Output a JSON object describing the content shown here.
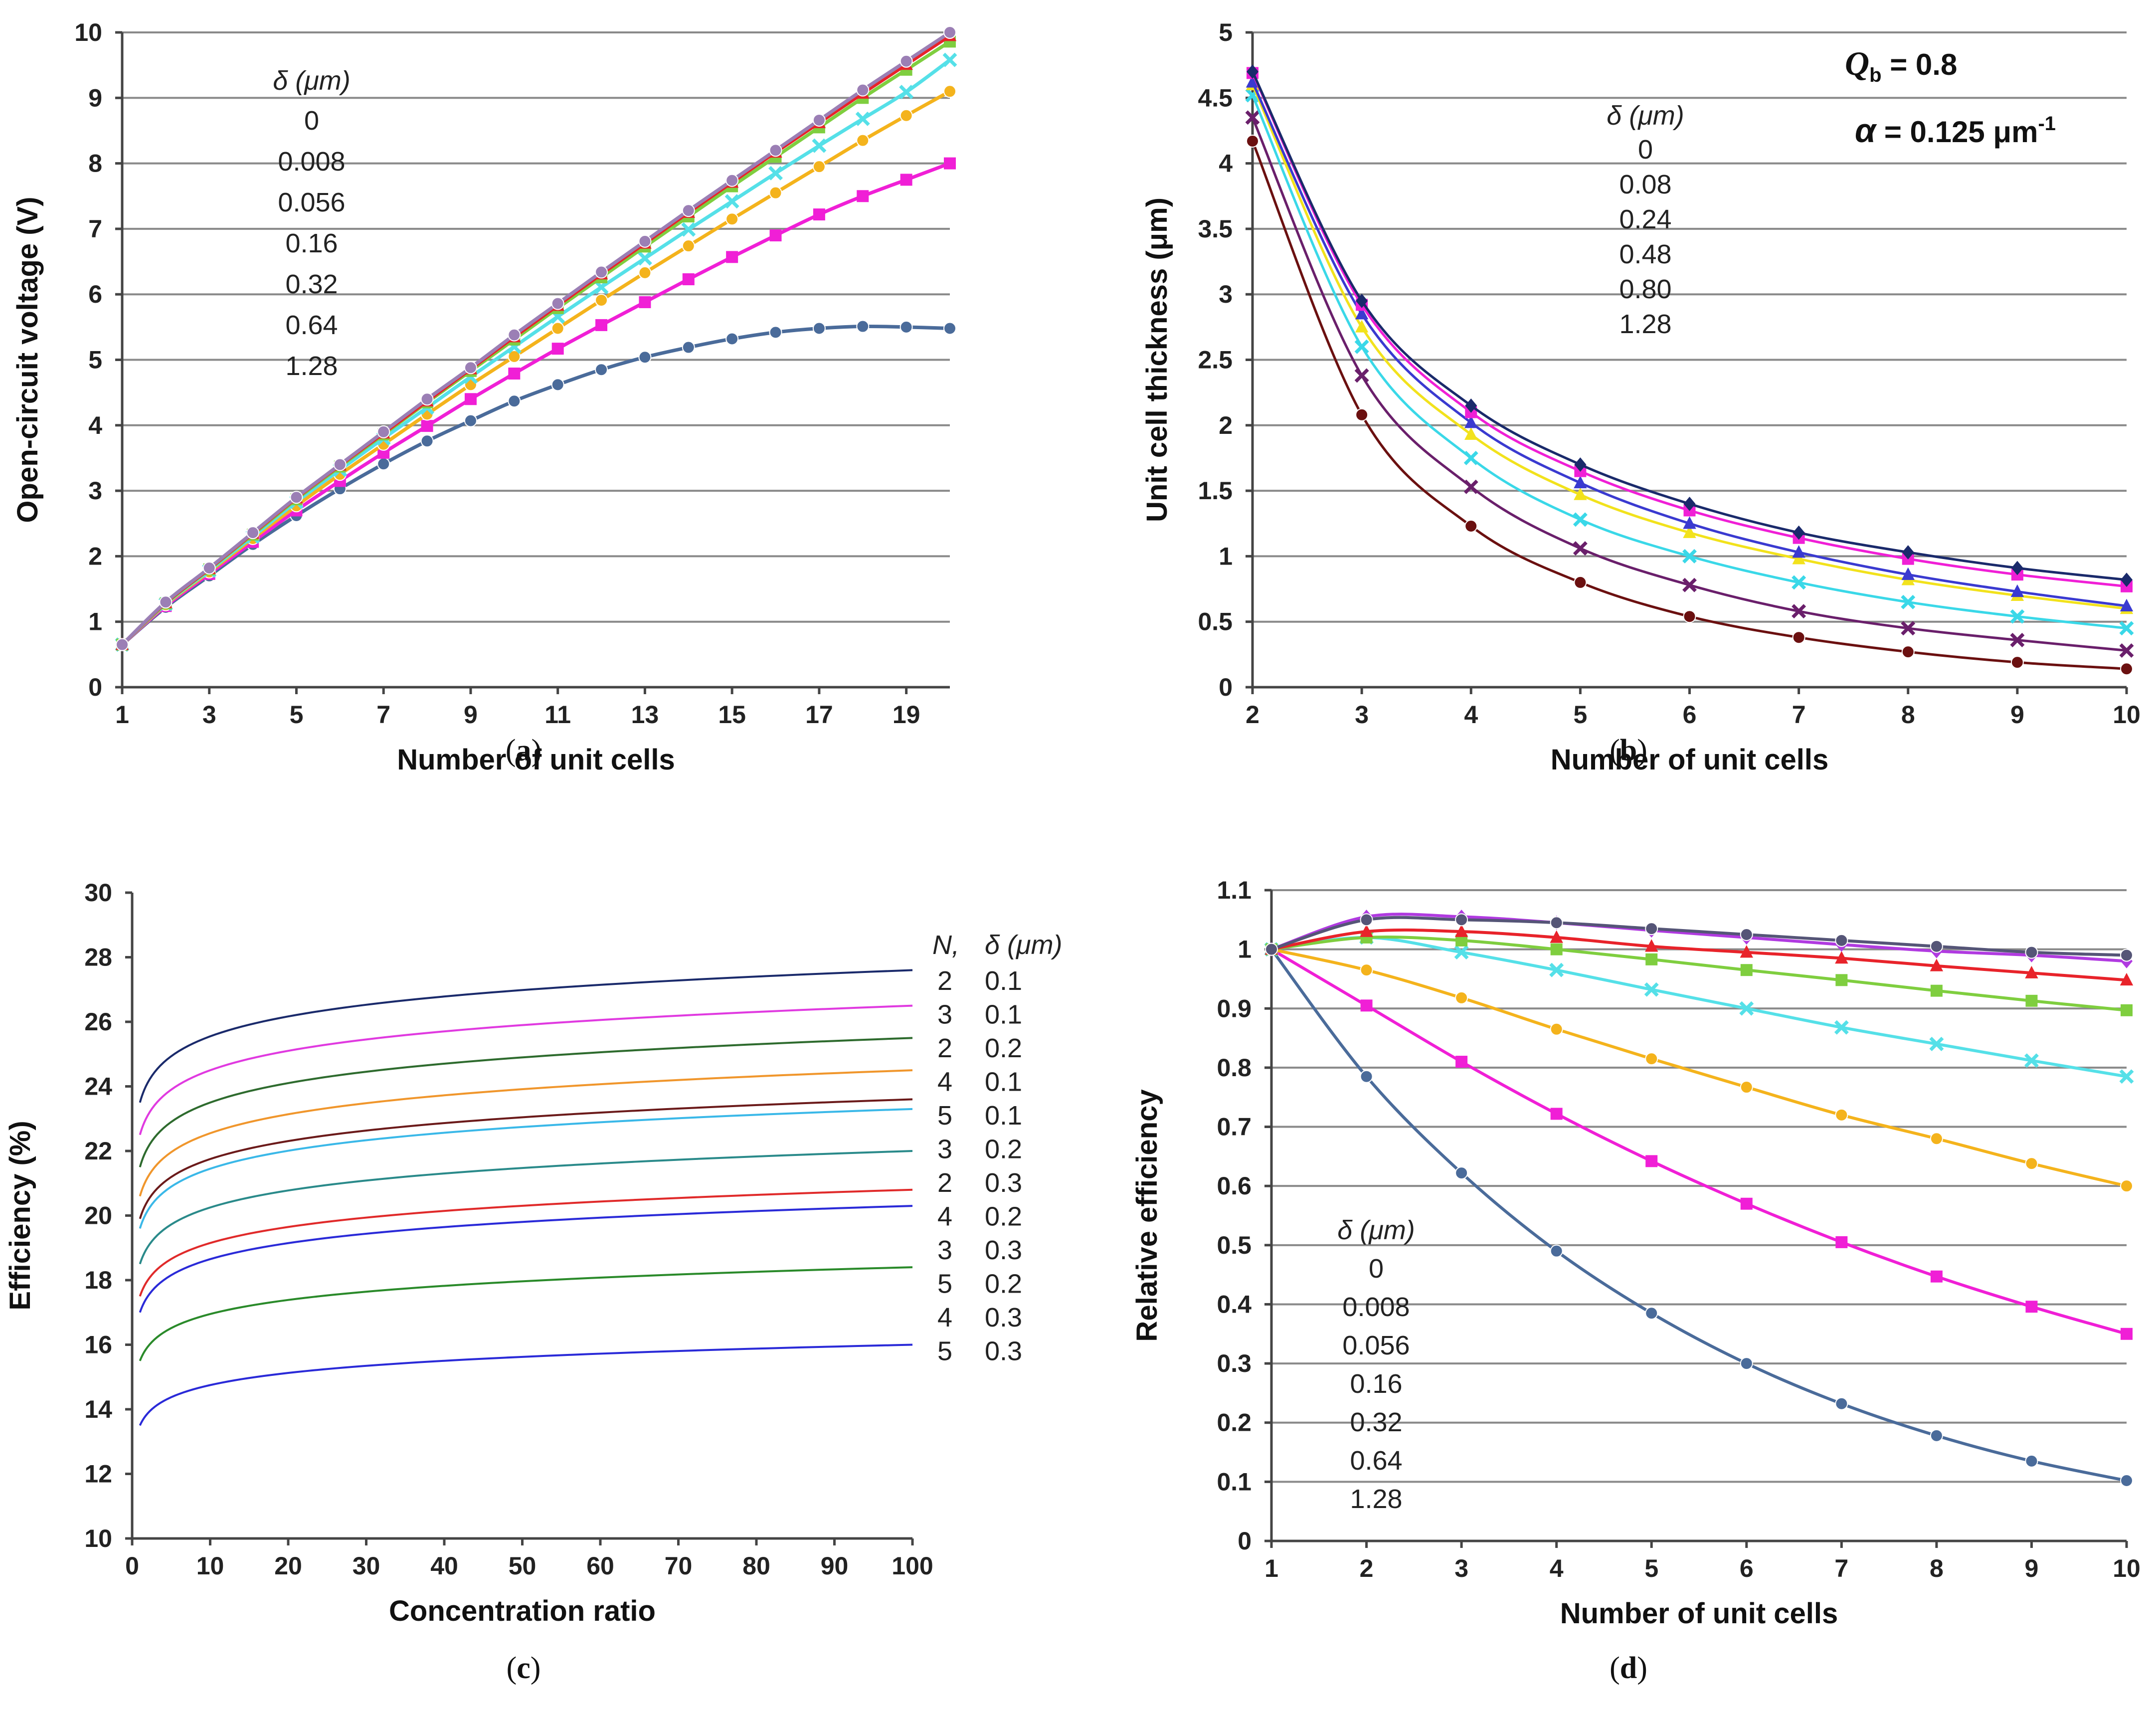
{
  "chart_data": [
    {
      "id": "a",
      "type": "line",
      "panel_label": "a",
      "xlabel": "Number of unit cells",
      "ylabel": "Open-circuit  voltage (V)",
      "xlim": [
        1,
        20
      ],
      "ylim": [
        0,
        10
      ],
      "xticks": [
        1,
        3,
        5,
        7,
        9,
        11,
        13,
        15,
        17,
        19
      ],
      "yticks": [
        0,
        1,
        2,
        3,
        4,
        5,
        6,
        7,
        8,
        9,
        10
      ],
      "x": [
        1,
        2,
        3,
        4,
        5,
        6,
        7,
        8,
        9,
        10,
        11,
        12,
        13,
        14,
        15,
        16,
        17,
        18,
        19,
        20
      ],
      "legend_title": "δ (μm)",
      "series": [
        {
          "name": "0",
          "color": "#9b7fb5",
          "marker": "circle",
          "values": [
            0.65,
            1.3,
            1.82,
            2.36,
            2.9,
            3.4,
            3.9,
            4.4,
            4.88,
            5.38,
            5.86,
            6.34,
            6.81,
            7.28,
            7.74,
            8.2,
            8.66,
            9.12,
            9.56,
            10.0
          ]
        },
        {
          "name": "0.008",
          "color": "#e8232a",
          "marker": "triangle",
          "values": [
            0.65,
            1.29,
            1.81,
            2.35,
            2.89,
            3.39,
            3.88,
            4.37,
            4.86,
            5.35,
            5.83,
            6.31,
            6.78,
            7.25,
            7.71,
            8.17,
            8.62,
            9.07,
            9.51,
            9.95
          ]
        },
        {
          "name": "0.056",
          "color": "#7fce3f",
          "marker": "square",
          "values": [
            0.65,
            1.28,
            1.8,
            2.33,
            2.87,
            3.37,
            3.86,
            4.35,
            4.83,
            5.31,
            5.79,
            6.26,
            6.73,
            7.19,
            7.65,
            8.1,
            8.55,
            9.0,
            9.43,
            9.86
          ]
        },
        {
          "name": "0.16",
          "color": "#55e0e8",
          "marker": "x",
          "values": [
            0.65,
            1.27,
            1.78,
            2.3,
            2.83,
            3.32,
            3.8,
            4.27,
            4.74,
            5.2,
            5.66,
            6.11,
            6.55,
            6.99,
            7.42,
            7.85,
            8.27,
            8.68,
            9.09,
            9.58
          ]
        },
        {
          "name": "0.32",
          "color": "#f4b31c",
          "marker": "circle",
          "values": [
            0.65,
            1.26,
            1.76,
            2.27,
            2.77,
            3.25,
            3.71,
            4.17,
            4.62,
            5.05,
            5.48,
            5.91,
            6.33,
            6.74,
            7.15,
            7.55,
            7.95,
            8.35,
            8.73,
            9.1
          ]
        },
        {
          "name": "0.64",
          "color": "#f01fd6",
          "marker": "square",
          "values": [
            0.65,
            1.24,
            1.73,
            2.22,
            2.7,
            3.15,
            3.58,
            3.99,
            4.4,
            4.79,
            5.17,
            5.53,
            5.88,
            6.23,
            6.57,
            6.9,
            7.22,
            7.5,
            7.75,
            8.0
          ]
        },
        {
          "name": "1.28",
          "color": "#4a6b9a",
          "marker": "circle",
          "values": [
            0.65,
            1.22,
            1.7,
            2.18,
            2.62,
            3.03,
            3.41,
            3.76,
            4.07,
            4.37,
            4.62,
            4.85,
            5.04,
            5.19,
            5.32,
            5.42,
            5.48,
            5.51,
            5.5,
            5.48
          ]
        }
      ]
    },
    {
      "id": "b",
      "type": "line",
      "panel_label": "b",
      "xlabel": "Number of unit cells",
      "ylabel": "Unit cell thickness  (μm)",
      "xlim": [
        2,
        10
      ],
      "ylim": [
        0,
        5
      ],
      "xticks": [
        2,
        3,
        4,
        5,
        6,
        7,
        8,
        9,
        10
      ],
      "yticks": [
        0,
        0.5,
        1,
        1.5,
        2,
        2.5,
        3,
        3.5,
        4,
        4.5,
        5
      ],
      "x": [
        2,
        3,
        4,
        5,
        6,
        7,
        8,
        9,
        10
      ],
      "legend_title": "δ (μm)",
      "annotation_q_prefix": "Q",
      "annotation_q_sub": "b",
      "annotation_q_value": " = 0.8",
      "annotation_alpha_prefix": "α",
      "annotation_alpha_value": " = 0.125 μm",
      "annotation_alpha_exp": "-1",
      "series": [
        {
          "name": "0",
          "color": "#1a2a6b",
          "marker": "diamond",
          "values": [
            4.7,
            2.95,
            2.15,
            1.7,
            1.4,
            1.18,
            1.03,
            0.91,
            0.82
          ]
        },
        {
          "name": "0.08",
          "color": "#f01fd6",
          "marker": "square",
          "values": [
            4.69,
            2.92,
            2.1,
            1.65,
            1.35,
            1.14,
            0.98,
            0.86,
            0.77
          ]
        },
        {
          "name": "0.24",
          "color": "#3a3ad0",
          "marker": "triangle",
          "values": [
            4.62,
            2.85,
            2.02,
            1.56,
            1.25,
            1.03,
            0.86,
            0.73,
            0.62
          ]
        },
        {
          "name": "0.48",
          "color": "#f2e21c",
          "marker": "triangle",
          "values": [
            4.6,
            2.75,
            1.93,
            1.47,
            1.18,
            0.98,
            0.82,
            0.7,
            0.6
          ]
        },
        {
          "name": "0.80",
          "color": "#3ad8e8",
          "marker": "x",
          "values": [
            4.52,
            2.6,
            1.75,
            1.28,
            1.0,
            0.8,
            0.65,
            0.54,
            0.45
          ]
        },
        {
          "name": "1.28",
          "color": "#6a1f6b",
          "marker": "x",
          "values": [
            4.35,
            2.38,
            1.53,
            1.06,
            0.78,
            0.58,
            0.45,
            0.36,
            0.28
          ]
        },
        {
          "name": "",
          "color": "#6b1010",
          "marker": "circle",
          "values": [
            4.17,
            2.08,
            1.23,
            0.8,
            0.54,
            0.38,
            0.27,
            0.19,
            0.14
          ]
        }
      ]
    },
    {
      "id": "c",
      "type": "line",
      "panel_label": "c",
      "xlabel": "Concentration ratio",
      "ylabel": "Efficiency (%)",
      "xlim": [
        0,
        100
      ],
      "ylim": [
        10,
        30
      ],
      "xticks": [
        0,
        10,
        20,
        30,
        40,
        50,
        60,
        70,
        80,
        90,
        100
      ],
      "yticks": [
        10,
        12,
        14,
        16,
        18,
        20,
        22,
        24,
        26,
        28,
        30
      ],
      "legend_title_n": "N,",
      "legend_title_d": "δ (μm)",
      "series": [
        {
          "n": "2",
          "d": "0.1",
          "color": "#1a2a6b",
          "start": 23.5,
          "end": 27.6
        },
        {
          "n": "3",
          "d": "0.1",
          "color": "#e03ae0",
          "start": 22.5,
          "end": 26.5
        },
        {
          "n": "2",
          "d": "0.2",
          "color": "#2e6b2e",
          "start": 21.5,
          "end": 25.5
        },
        {
          "n": "4",
          "d": "0.1",
          "color": "#f0962c",
          "start": 20.6,
          "end": 24.5
        },
        {
          "n": "5",
          "d": "0.1",
          "color": "#6b1a1a",
          "start": 19.9,
          "end": 23.6
        },
        {
          "n": "3",
          "d": "0.2",
          "color": "#3ab8e8",
          "start": 19.6,
          "end": 23.3
        },
        {
          "n": "2",
          "d": "0.3",
          "color": "#2a8a8a",
          "start": 18.5,
          "end": 22.0
        },
        {
          "n": "4",
          "d": "0.2",
          "color": "#e02a2a",
          "start": 17.5,
          "end": 20.8
        },
        {
          "n": "3",
          "d": "0.3",
          "color": "#2a2ad8",
          "start": 17.0,
          "end": 20.3
        },
        {
          "n": "5",
          "d": "0.2",
          "color": "#2a8a2a",
          "start": 15.5,
          "end": 18.4
        },
        {
          "n": "4",
          "d": "0.3",
          "color": "#2a2ad8",
          "start": 13.5,
          "end": 16.0
        },
        {
          "n": "5",
          "d": "0.3",
          "color": "",
          "start": null,
          "end": null
        }
      ]
    },
    {
      "id": "d",
      "type": "line",
      "panel_label": "d",
      "xlabel": "Number of unit cells",
      "ylabel": "Relative efficiency",
      "xlim": [
        1,
        10
      ],
      "ylim": [
        0,
        1.1
      ],
      "xticks": [
        1,
        2,
        3,
        4,
        5,
        6,
        7,
        8,
        9,
        10
      ],
      "yticks": [
        0,
        0.1,
        0.2,
        0.3,
        0.4,
        0.5,
        0.6,
        0.7,
        0.8,
        0.9,
        1,
        1.1
      ],
      "ytick_labels": [
        "0",
        "0.1",
        "0.2",
        "0.3",
        "0.4",
        "0.5",
        "0.6",
        "0.7",
        "0.8",
        "0.9",
        "1",
        "1.1"
      ],
      "x": [
        1,
        2,
        3,
        4,
        5,
        6,
        7,
        8,
        9,
        10
      ],
      "legend_title": "δ (μm)",
      "series": [
        {
          "name": "0",
          "color": "#555577",
          "marker": "circle",
          "values": [
            1.0,
            1.05,
            1.05,
            1.045,
            1.035,
            1.025,
            1.015,
            1.005,
            0.995,
            0.99
          ]
        },
        {
          "name": "0.008",
          "color": "#b03ae0",
          "marker": "diamond",
          "values": [
            1.0,
            1.055,
            1.055,
            1.045,
            1.032,
            1.02,
            1.008,
            0.997,
            0.99,
            0.98
          ]
        },
        {
          "name": "0.056",
          "color": "#e8232a",
          "marker": "triangle",
          "values": [
            1.0,
            1.03,
            1.03,
            1.02,
            1.005,
            0.995,
            0.985,
            0.972,
            0.96,
            0.948
          ]
        },
        {
          "name": "0.16",
          "color": "#7fce3f",
          "marker": "square",
          "values": [
            1.0,
            1.02,
            1.015,
            1.0,
            0.983,
            0.965,
            0.948,
            0.93,
            0.913,
            0.897
          ]
        },
        {
          "name": "0.32",
          "color": "#55e0e8",
          "marker": "x",
          "values": [
            1.0,
            1.02,
            0.995,
            0.965,
            0.932,
            0.9,
            0.868,
            0.84,
            0.812,
            0.785
          ]
        },
        {
          "name": "0.64",
          "color": "#f4b31c",
          "marker": "circle",
          "values": [
            1.0,
            0.965,
            0.918,
            0.865,
            0.815,
            0.767,
            0.72,
            0.68,
            0.638,
            0.6
          ]
        },
        {
          "name": "1.28",
          "color": "#f01fd6",
          "marker": "square",
          "values": [
            1.0,
            0.905,
            0.81,
            0.722,
            0.642,
            0.57,
            0.505,
            0.447,
            0.396,
            0.35
          ]
        },
        {
          "name": "",
          "color": "#4a6b9a",
          "marker": "circle",
          "values": [
            1.0,
            0.785,
            0.622,
            0.49,
            0.385,
            0.3,
            0.232,
            0.178,
            0.135,
            0.102
          ]
        }
      ]
    }
  ]
}
